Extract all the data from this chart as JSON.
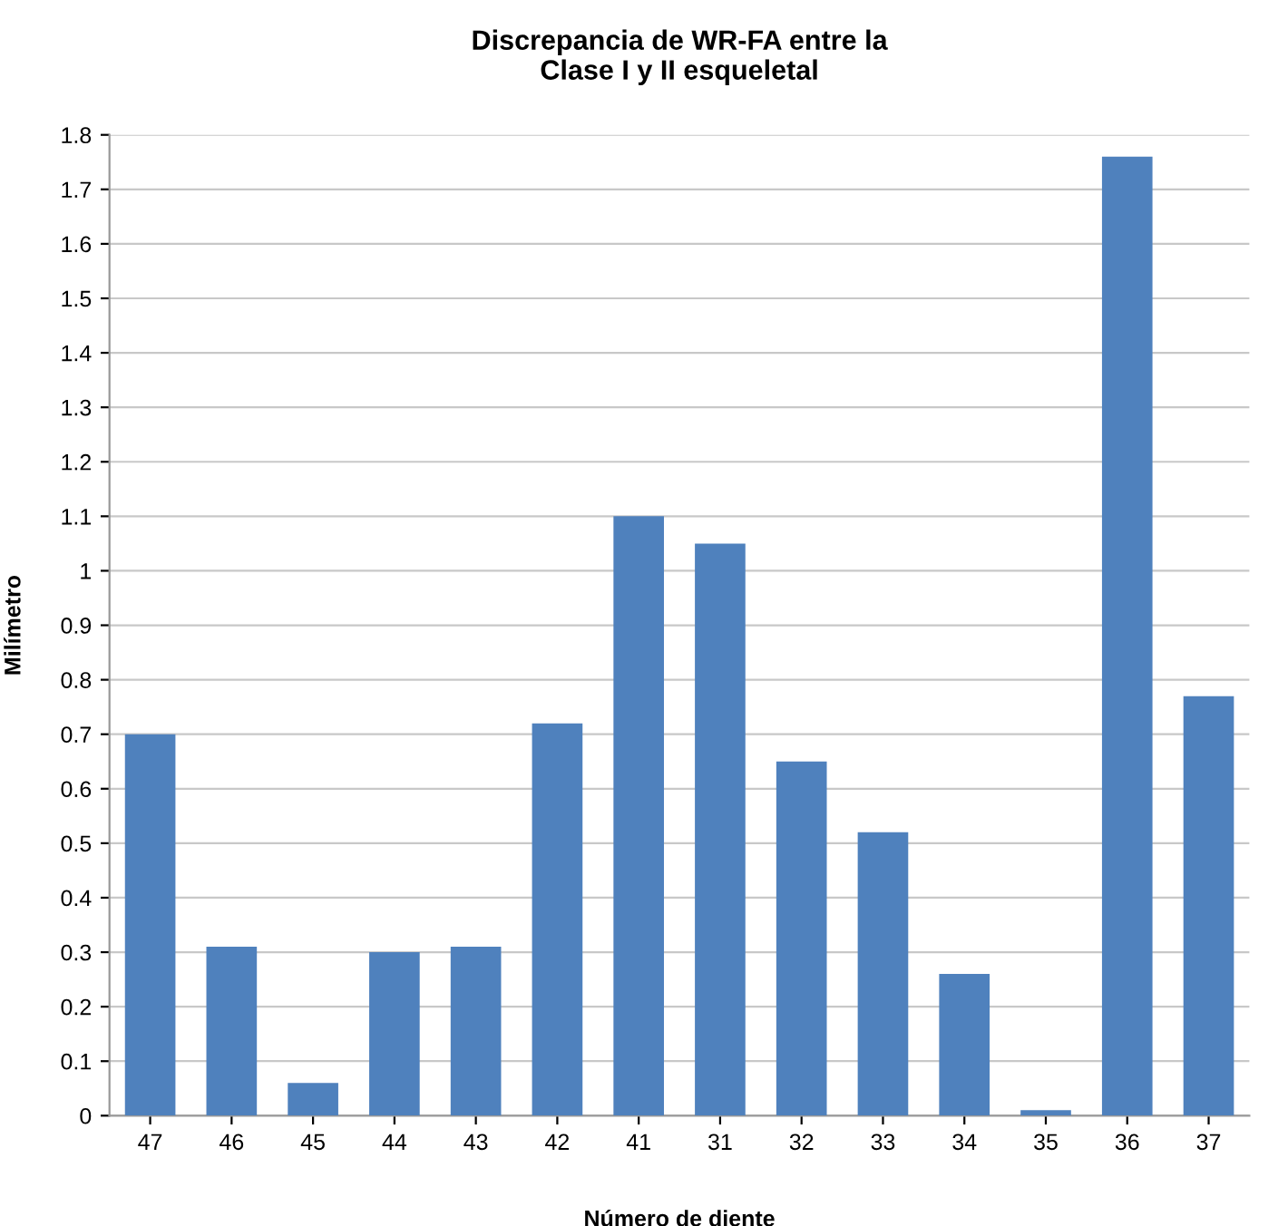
{
  "chart_data": {
    "type": "bar",
    "title": "Discrepancia de WR-FA entre la\nClase I y II esqueletal",
    "xlabel": "Número de diente",
    "ylabel": "Milímetro",
    "categories": [
      "47",
      "46",
      "45",
      "44",
      "43",
      "42",
      "41",
      "31",
      "32",
      "33",
      "34",
      "35",
      "36",
      "37"
    ],
    "values": [
      0.7,
      0.31,
      0.06,
      0.3,
      0.31,
      0.72,
      1.1,
      1.05,
      0.65,
      0.52,
      0.26,
      0.01,
      1.76,
      0.77
    ],
    "color": "#4f81bd",
    "ylim": [
      0,
      1.8
    ],
    "yticks": [
      0,
      0.1,
      0.2,
      0.3,
      0.4,
      0.5,
      0.6,
      0.7,
      0.8,
      0.9,
      1,
      1.1,
      1.2,
      1.3,
      1.4,
      1.5,
      1.6,
      1.7,
      1.8
    ],
    "grid": "y",
    "legend": false
  }
}
